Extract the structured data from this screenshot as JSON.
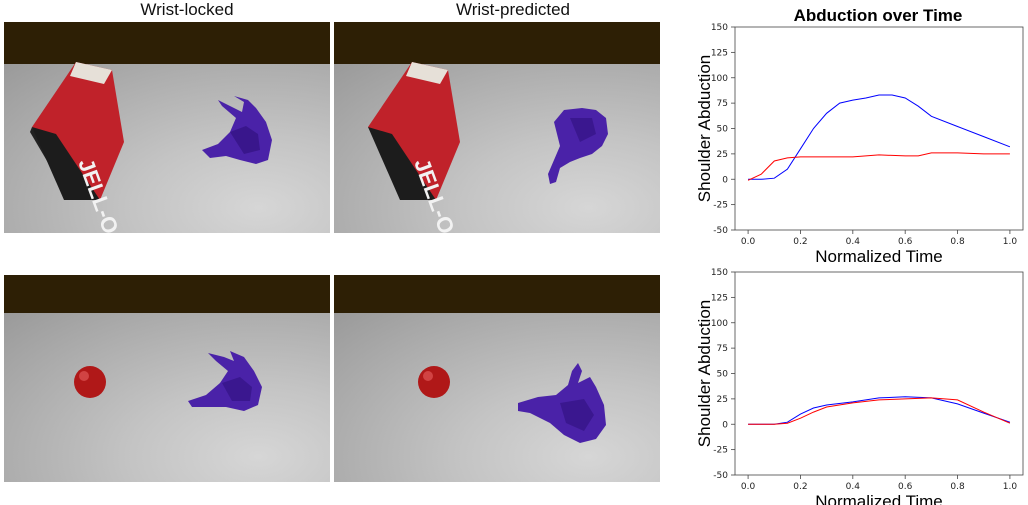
{
  "columns": {
    "left_title": "Wrist-locked",
    "middle_title": "Wrist-predicted",
    "right_title": "Abduction over Time"
  },
  "scenes": [
    {
      "name": "row1-wrist-locked",
      "object": "jello-box-icon",
      "hand": "purple-hand-icon"
    },
    {
      "name": "row1-wrist-predicted",
      "object": "jello-box-icon",
      "hand": "purple-hand-icon"
    },
    {
      "name": "row2-wrist-locked",
      "object": "red-apple-icon",
      "hand": "purple-hand-icon"
    },
    {
      "name": "row2-wrist-predicted",
      "object": "red-apple-icon",
      "hand": "purple-hand-icon"
    }
  ],
  "jello_text": "JELL-O",
  "colors": {
    "wall": "#2d1f05",
    "floor_light": "#d6d6d6",
    "floor_dark": "#9a9a9a",
    "hand": "#4a22a8",
    "box": "#c0222a",
    "apple": "#b01818",
    "blue_line": "#0000ff",
    "red_line": "#ff0000"
  },
  "chart_data": [
    {
      "type": "line",
      "title": "Abduction over Time",
      "xlabel": "Normalized Time",
      "ylabel": "Shoulder Abduction",
      "xlim": [
        -0.05,
        1.05
      ],
      "ylim": [
        -50,
        150
      ],
      "xticks": [
        0.0,
        0.2,
        0.4,
        0.6,
        0.8,
        1.0
      ],
      "yticks": [
        -50,
        -25,
        0,
        25,
        50,
        75,
        100,
        125,
        150
      ],
      "grid": false,
      "series": [
        {
          "color": "#0000ff",
          "x": [
            0.0,
            0.05,
            0.1,
            0.15,
            0.2,
            0.25,
            0.3,
            0.35,
            0.4,
            0.45,
            0.5,
            0.55,
            0.6,
            0.65,
            0.7,
            0.8,
            0.9,
            1.0
          ],
          "y": [
            0,
            0,
            1,
            10,
            30,
            50,
            65,
            75,
            78,
            80,
            83,
            83,
            80,
            72,
            62,
            52,
            42,
            32
          ]
        },
        {
          "color": "#ff0000",
          "x": [
            0.0,
            0.05,
            0.1,
            0.15,
            0.2,
            0.3,
            0.4,
            0.5,
            0.6,
            0.65,
            0.7,
            0.8,
            0.9,
            1.0
          ],
          "y": [
            -1,
            5,
            18,
            21,
            22,
            22,
            22,
            24,
            23,
            23,
            26,
            26,
            25,
            25
          ]
        }
      ]
    },
    {
      "type": "line",
      "title": "",
      "xlabel": "Normalized Time",
      "ylabel": "Shoulder Abduction",
      "xlim": [
        -0.05,
        1.05
      ],
      "ylim": [
        -50,
        150
      ],
      "xticks": [
        0.0,
        0.2,
        0.4,
        0.6,
        0.8,
        1.0
      ],
      "yticks": [
        -50,
        -25,
        0,
        25,
        50,
        75,
        100,
        125,
        150
      ],
      "grid": false,
      "series": [
        {
          "color": "#0000ff",
          "x": [
            0.0,
            0.1,
            0.15,
            0.2,
            0.25,
            0.3,
            0.4,
            0.5,
            0.6,
            0.7,
            0.8,
            0.9,
            1.0
          ],
          "y": [
            0,
            0,
            2,
            10,
            16,
            19,
            22,
            26,
            27,
            26,
            20,
            11,
            2
          ]
        },
        {
          "color": "#ff0000",
          "x": [
            0.0,
            0.1,
            0.15,
            0.2,
            0.25,
            0.3,
            0.4,
            0.5,
            0.6,
            0.7,
            0.8,
            0.9,
            1.0
          ],
          "y": [
            0,
            0,
            1,
            6,
            12,
            17,
            21,
            24,
            25,
            26,
            24,
            12,
            1
          ]
        }
      ]
    }
  ]
}
